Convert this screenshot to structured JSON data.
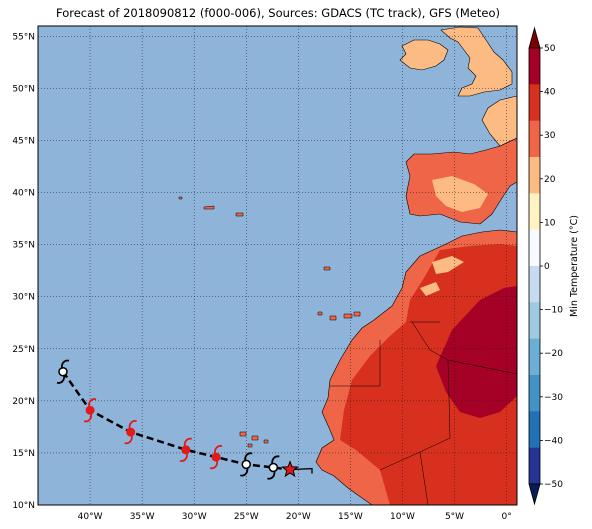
{
  "title": "Forecast of 2018090812 (f000-006), Sources: GDACS (TC track), GFS (Meteo)",
  "map": {
    "lat_range": [
      10,
      56
    ],
    "lon_range": [
      -45,
      1
    ],
    "lat_ticks": [
      "10°N",
      "15°N",
      "20°N",
      "25°N",
      "30°N",
      "35°N",
      "40°N",
      "45°N",
      "50°N",
      "55°N"
    ],
    "lon_ticks": [
      "40°W",
      "35°W",
      "30°W",
      "25°W",
      "20°W",
      "15°W",
      "10°W",
      "5°W",
      "0°"
    ],
    "ocean_color": "#8fb4d9",
    "grid": "dotted"
  },
  "track": {
    "points": [
      {
        "lon": -42.6,
        "lat": 22.8,
        "color": "#000000"
      },
      {
        "lon": -40.0,
        "lat": 19.1,
        "color": "#e31a1c"
      },
      {
        "lon": -36.1,
        "lat": 17.0,
        "color": "#e31a1c"
      },
      {
        "lon": -30.8,
        "lat": 15.3,
        "color": "#e31a1c"
      },
      {
        "lon": -27.9,
        "lat": 14.6,
        "color": "#e31a1c"
      },
      {
        "lon": -25.0,
        "lat": 13.9,
        "color": "#000000"
      },
      {
        "lon": -22.4,
        "lat": 13.6,
        "color": "#000000"
      }
    ],
    "current_position": {
      "lon": -20.8,
      "lat": 13.4
    }
  },
  "colorbar": {
    "label": "Min Temperature (°C)",
    "ticks": [
      "50",
      "40",
      "30",
      "20",
      "10",
      "0",
      "−10",
      "−20",
      "−30",
      "−40",
      "−50"
    ],
    "colors": [
      "#7f0000",
      "#a50026",
      "#d7301f",
      "#ef6548",
      "#fdbb84",
      "#fff3c4",
      "#f7fbff",
      "#c6dbef",
      "#9ecae1",
      "#6baed6",
      "#4292c6",
      "#2171b5",
      "#253494",
      "#081d58"
    ]
  }
}
